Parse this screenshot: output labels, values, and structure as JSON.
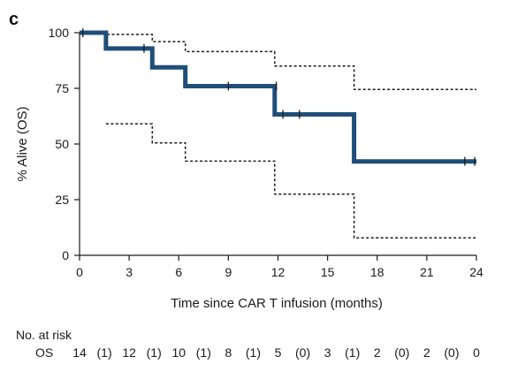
{
  "panel_label": "c",
  "chart_data": {
    "type": "line",
    "title": "",
    "xlabel": "Time since CAR T infusion (months)",
    "ylabel": "% Alive (OS)",
    "xlim": [
      0,
      24
    ],
    "ylim": [
      0,
      100
    ],
    "x_ticks": [
      0,
      3,
      6,
      9,
      12,
      15,
      18,
      21,
      24
    ],
    "y_ticks": [
      0,
      25,
      50,
      75,
      100
    ],
    "grid": false,
    "series": [
      {
        "role": "estimate",
        "color": "#1f4e79",
        "points": [
          [
            0,
            100
          ],
          [
            1.6,
            100
          ],
          [
            1.6,
            92.9
          ],
          [
            4.4,
            92.9
          ],
          [
            4.4,
            84.4
          ],
          [
            6.4,
            84.4
          ],
          [
            6.4,
            76.0
          ],
          [
            11.8,
            76.0
          ],
          [
            11.8,
            63.3
          ],
          [
            16.6,
            63.3
          ],
          [
            16.6,
            42.2
          ],
          [
            24,
            42.2
          ]
        ],
        "censor_marks": [
          [
            0.2,
            100
          ],
          [
            3.9,
            92.9
          ],
          [
            9.0,
            76.0
          ],
          [
            11.9,
            76.0
          ],
          [
            12.3,
            63.3
          ],
          [
            13.3,
            63.3
          ],
          [
            23.3,
            42.2
          ],
          [
            23.9,
            42.2
          ]
        ]
      },
      {
        "role": "upper-ci",
        "color": "#1a1a1a",
        "dashed": true,
        "points": [
          [
            0,
            100
          ],
          [
            1.6,
            100
          ],
          [
            1.6,
            99.2
          ],
          [
            4.4,
            99.2
          ],
          [
            4.4,
            96.0
          ],
          [
            6.4,
            96.0
          ],
          [
            6.4,
            91.5
          ],
          [
            11.8,
            91.5
          ],
          [
            11.8,
            85.0
          ],
          [
            16.6,
            85.0
          ],
          [
            16.6,
            74.5
          ],
          [
            24,
            74.5
          ]
        ]
      },
      {
        "role": "lower-ci",
        "color": "#1a1a1a",
        "dashed": true,
        "points": [
          [
            1.6,
            59.1
          ],
          [
            4.4,
            59.1
          ],
          [
            4.4,
            50.5
          ],
          [
            6.4,
            50.5
          ],
          [
            6.4,
            42.3
          ],
          [
            11.8,
            42.3
          ],
          [
            11.8,
            27.5
          ],
          [
            16.6,
            27.5
          ],
          [
            16.6,
            7.8
          ],
          [
            24,
            7.8
          ]
        ]
      }
    ]
  },
  "risk_table": {
    "title": "No. at risk",
    "row_label": "OS",
    "entries": [
      {
        "x": 0,
        "text": "14"
      },
      {
        "x": 1.5,
        "text": "(1)"
      },
      {
        "x": 3,
        "text": "12"
      },
      {
        "x": 4.5,
        "text": "(1)"
      },
      {
        "x": 6,
        "text": "10"
      },
      {
        "x": 7.5,
        "text": "(1)"
      },
      {
        "x": 9,
        "text": "8"
      },
      {
        "x": 10.5,
        "text": "(1)"
      },
      {
        "x": 12,
        "text": "5"
      },
      {
        "x": 13.5,
        "text": "(0)"
      },
      {
        "x": 15,
        "text": "3"
      },
      {
        "x": 16.5,
        "text": "(1)"
      },
      {
        "x": 18,
        "text": "2"
      },
      {
        "x": 19.5,
        "text": "(0)"
      },
      {
        "x": 21,
        "text": "2"
      },
      {
        "x": 22.5,
        "text": "(0)"
      },
      {
        "x": 24,
        "text": "0"
      }
    ]
  }
}
